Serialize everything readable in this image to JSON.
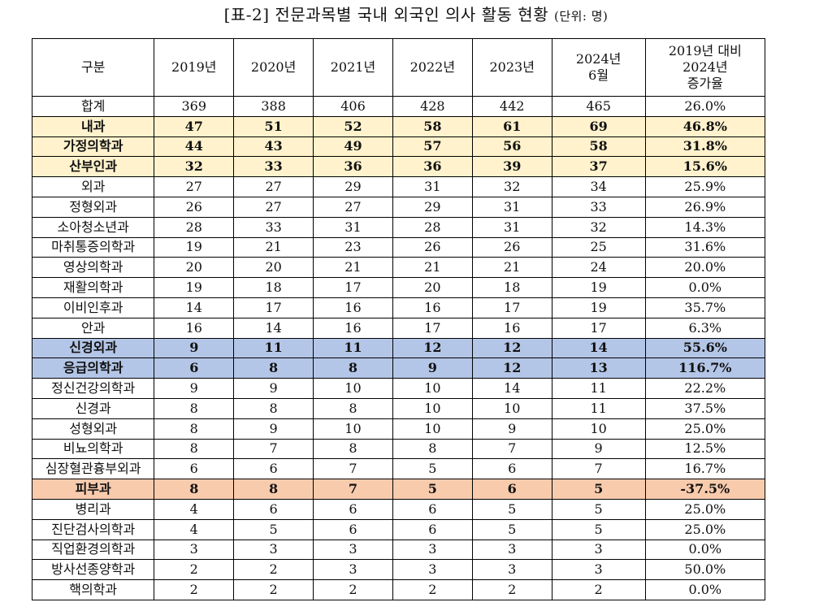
{
  "title": {
    "main": "[표-2] 전문과목별 국내 외국인 의사 활동 현황",
    "unit": "(단위: 명)"
  },
  "table": {
    "headers": {
      "category": "구분",
      "y2019": "2019년",
      "y2020": "2020년",
      "y2021": "2021년",
      "y2022": "2022년",
      "y2023": "2023년",
      "y2024_line1": "2024년",
      "y2024_line2": "6월",
      "rate_line1": "2019년 대비",
      "rate_line2": "2024년",
      "rate_line3": "증가율"
    },
    "highlight_colors": {
      "yellow": "#fff2cc",
      "blue": "#b4c6e7",
      "orange": "#f8cbad"
    },
    "rows": [
      {
        "name": "합계",
        "v": [
          "369",
          "388",
          "406",
          "428",
          "442",
          "465"
        ],
        "rate": "26.0%",
        "highlight": "none"
      },
      {
        "name": "내과",
        "v": [
          "47",
          "51",
          "52",
          "58",
          "61",
          "69"
        ],
        "rate": "46.8%",
        "highlight": "yellow"
      },
      {
        "name": "가정의학과",
        "v": [
          "44",
          "43",
          "49",
          "57",
          "56",
          "58"
        ],
        "rate": "31.8%",
        "highlight": "yellow"
      },
      {
        "name": "산부인과",
        "v": [
          "32",
          "33",
          "36",
          "36",
          "39",
          "37"
        ],
        "rate": "15.6%",
        "highlight": "yellow"
      },
      {
        "name": "외과",
        "v": [
          "27",
          "27",
          "29",
          "31",
          "32",
          "34"
        ],
        "rate": "25.9%",
        "highlight": "none"
      },
      {
        "name": "정형외과",
        "v": [
          "26",
          "27",
          "27",
          "29",
          "31",
          "33"
        ],
        "rate": "26.9%",
        "highlight": "none"
      },
      {
        "name": "소아청소년과",
        "v": [
          "28",
          "33",
          "31",
          "28",
          "31",
          "32"
        ],
        "rate": "14.3%",
        "highlight": "none"
      },
      {
        "name": "마취통증의학과",
        "v": [
          "19",
          "21",
          "23",
          "26",
          "26",
          "25"
        ],
        "rate": "31.6%",
        "highlight": "none"
      },
      {
        "name": "영상의학과",
        "v": [
          "20",
          "20",
          "21",
          "21",
          "21",
          "24"
        ],
        "rate": "20.0%",
        "highlight": "none"
      },
      {
        "name": "재활의학과",
        "v": [
          "19",
          "18",
          "17",
          "20",
          "18",
          "19"
        ],
        "rate": "0.0%",
        "highlight": "none"
      },
      {
        "name": "이비인후과",
        "v": [
          "14",
          "17",
          "16",
          "16",
          "17",
          "19"
        ],
        "rate": "35.7%",
        "highlight": "none"
      },
      {
        "name": "안과",
        "v": [
          "16",
          "14",
          "16",
          "17",
          "16",
          "17"
        ],
        "rate": "6.3%",
        "highlight": "none"
      },
      {
        "name": "신경외과",
        "v": [
          "9",
          "11",
          "11",
          "12",
          "12",
          "14"
        ],
        "rate": "55.6%",
        "highlight": "blue"
      },
      {
        "name": "응급의학과",
        "v": [
          "6",
          "8",
          "8",
          "9",
          "12",
          "13"
        ],
        "rate": "116.7%",
        "highlight": "blue"
      },
      {
        "name": "정신건강의학과",
        "v": [
          "9",
          "9",
          "10",
          "10",
          "14",
          "11"
        ],
        "rate": "22.2%",
        "highlight": "none"
      },
      {
        "name": "신경과",
        "v": [
          "8",
          "8",
          "8",
          "10",
          "10",
          "11"
        ],
        "rate": "37.5%",
        "highlight": "none"
      },
      {
        "name": "성형외과",
        "v": [
          "8",
          "9",
          "10",
          "10",
          "9",
          "10"
        ],
        "rate": "25.0%",
        "highlight": "none"
      },
      {
        "name": "비뇨의학과",
        "v": [
          "8",
          "7",
          "8",
          "8",
          "7",
          "9"
        ],
        "rate": "12.5%",
        "highlight": "none"
      },
      {
        "name": "심장혈관흉부외과",
        "v": [
          "6",
          "6",
          "7",
          "5",
          "6",
          "7"
        ],
        "rate": "16.7%",
        "highlight": "none"
      },
      {
        "name": "피부과",
        "v": [
          "8",
          "8",
          "7",
          "5",
          "6",
          "5"
        ],
        "rate": "-37.5%",
        "highlight": "orange"
      },
      {
        "name": "병리과",
        "v": [
          "4",
          "6",
          "6",
          "6",
          "5",
          "5"
        ],
        "rate": "25.0%",
        "highlight": "none"
      },
      {
        "name": "진단검사의학과",
        "v": [
          "4",
          "5",
          "6",
          "6",
          "5",
          "5"
        ],
        "rate": "25.0%",
        "highlight": "none"
      },
      {
        "name": "직업환경의학과",
        "v": [
          "3",
          "3",
          "3",
          "3",
          "3",
          "3"
        ],
        "rate": "0.0%",
        "highlight": "none"
      },
      {
        "name": "방사선종양학과",
        "v": [
          "2",
          "2",
          "3",
          "3",
          "3",
          "3"
        ],
        "rate": "50.0%",
        "highlight": "none"
      },
      {
        "name": "핵의학과",
        "v": [
          "2",
          "2",
          "2",
          "2",
          "2",
          "2"
        ],
        "rate": "0.0%",
        "highlight": "none"
      }
    ]
  }
}
